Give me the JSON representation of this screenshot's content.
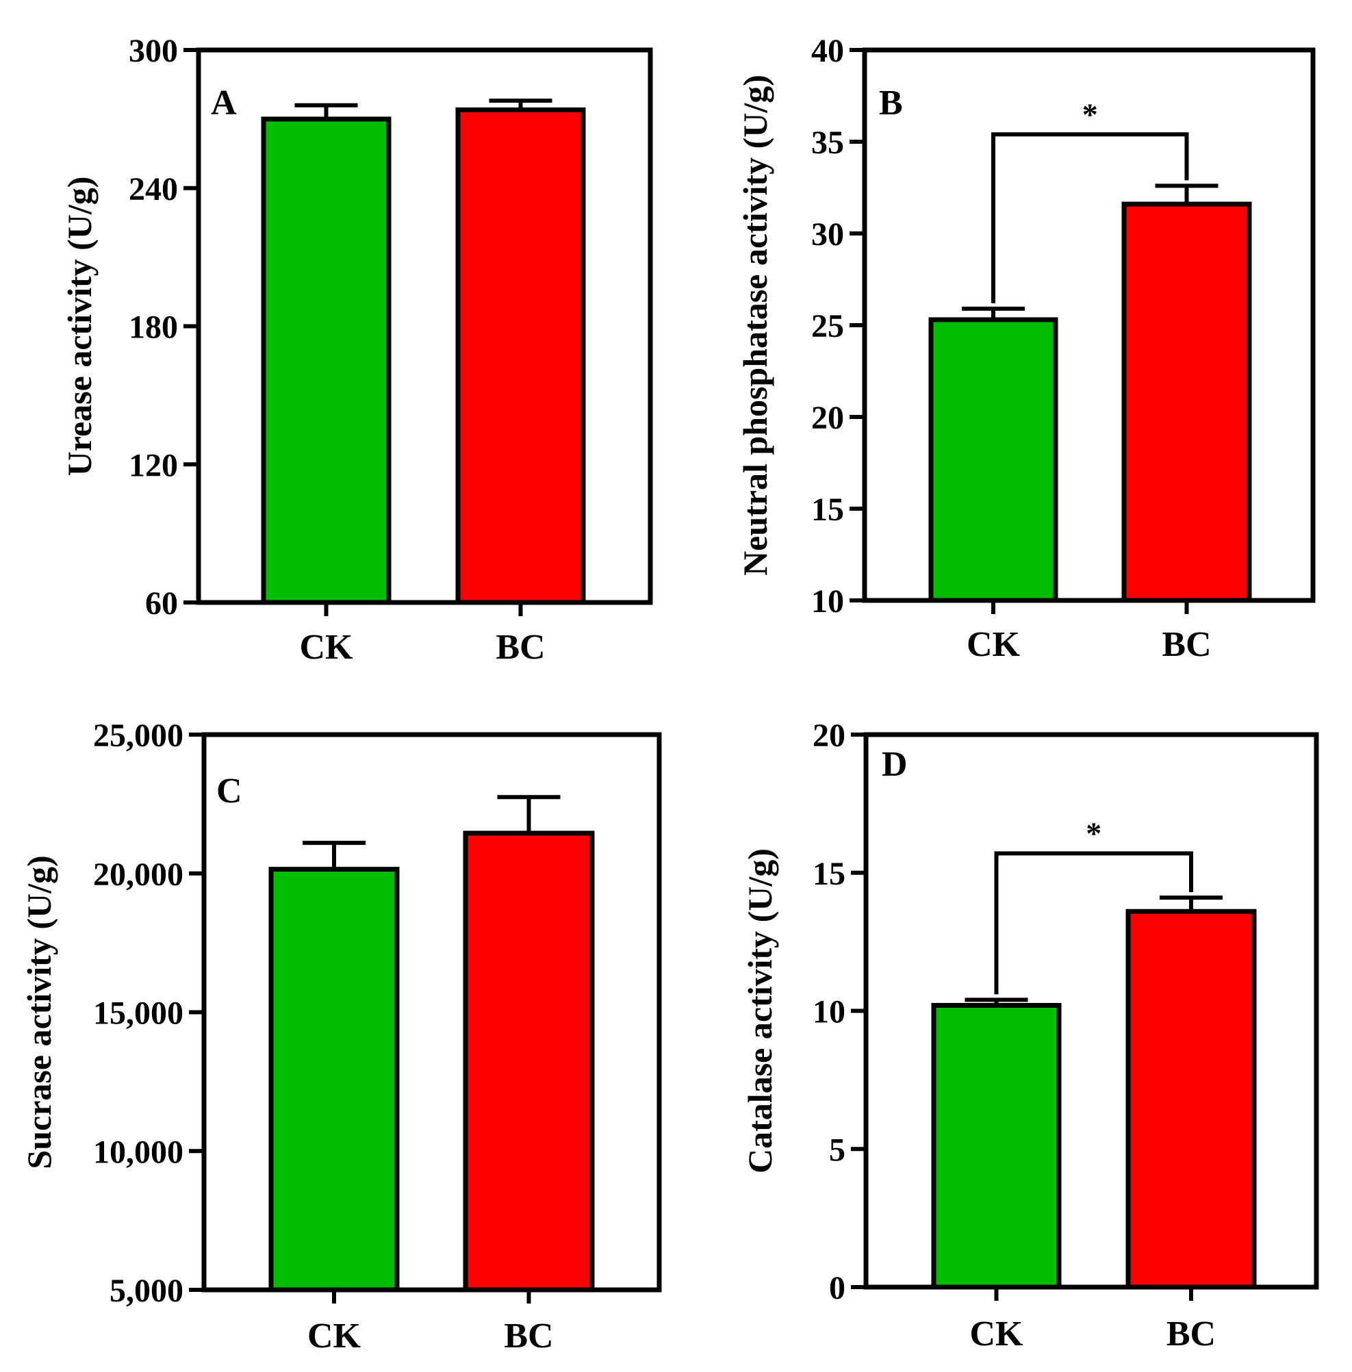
{
  "colors": {
    "CK": "#00bf00",
    "BC": "#ff0000",
    "line": "#000000"
  },
  "chart_data": [
    {
      "type": "bar",
      "panel": "A",
      "categories": [
        "CK",
        "BC"
      ],
      "values": [
        270,
        274
      ],
      "errors": [
        6,
        4
      ],
      "ylabel": "Urease activity (U/g)",
      "ylim": [
        60,
        300
      ],
      "yticks": [
        60,
        120,
        180,
        240,
        300
      ],
      "ytick_labels": [
        "60",
        "120",
        "180",
        "240",
        "300"
      ],
      "significance": null
    },
    {
      "type": "bar",
      "panel": "B",
      "categories": [
        "CK",
        "BC"
      ],
      "values": [
        25.3,
        31.6
      ],
      "errors": [
        0.6,
        1.0
      ],
      "ylabel": "Neutral phosphatase activity (U/g)",
      "ylim": [
        10,
        40
      ],
      "yticks": [
        10,
        15,
        20,
        25,
        30,
        35,
        40
      ],
      "ytick_labels": [
        "10",
        "15",
        "20",
        "25",
        "30",
        "35",
        "40"
      ],
      "significance": {
        "label": "*",
        "y": 35.4
      }
    },
    {
      "type": "bar",
      "panel": "C",
      "categories": [
        "CK",
        "BC"
      ],
      "values": [
        20150,
        21450
      ],
      "errors": [
        950,
        1300
      ],
      "ylabel": "Sucrase activity (U/g)",
      "ylim": [
        5000,
        25000
      ],
      "yticks": [
        5000,
        10000,
        15000,
        20000,
        25000
      ],
      "ytick_labels": [
        "5,000",
        "10,000",
        "15,000",
        "20,000",
        "25,000"
      ],
      "significance": null
    },
    {
      "type": "bar",
      "panel": "D",
      "categories": [
        "CK",
        "BC"
      ],
      "values": [
        10.2,
        13.6
      ],
      "errors": [
        0.2,
        0.5
      ],
      "ylabel": "Catalase activity (U/g)",
      "ylim": [
        0,
        20
      ],
      "yticks": [
        0,
        5,
        10,
        15,
        20
      ],
      "ytick_labels": [
        "0",
        "5",
        "10",
        "15",
        "20"
      ],
      "significance": {
        "label": "*",
        "y": 15.7
      }
    }
  ]
}
